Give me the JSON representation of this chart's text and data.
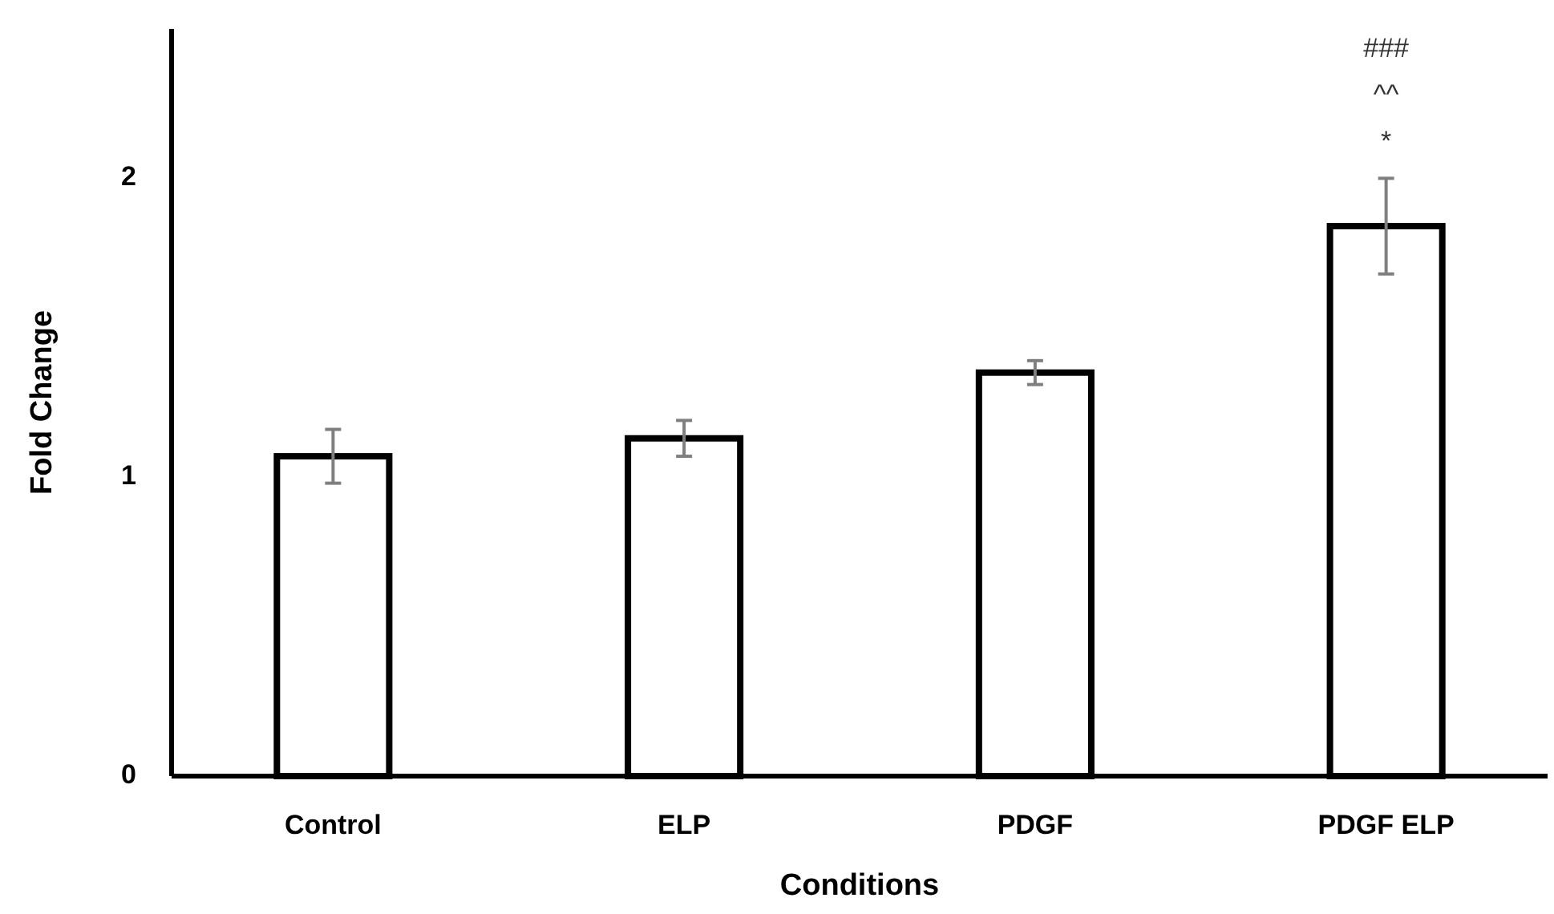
{
  "chart_data": {
    "type": "bar",
    "xlabel": "Conditions",
    "ylabel": "Fold Change",
    "categories": [
      "Control",
      "ELP",
      "PDGF",
      "PDGF ELP"
    ],
    "values": [
      1.07,
      1.13,
      1.35,
      1.84
    ],
    "errors": [
      0.09,
      0.06,
      0.04,
      0.16
    ],
    "color": "#ffffff",
    "ylim": [
      0,
      2.5
    ],
    "yticks": [
      0,
      1,
      2
    ],
    "grid": false,
    "annotations": [
      "###",
      "^^",
      "*"
    ]
  }
}
